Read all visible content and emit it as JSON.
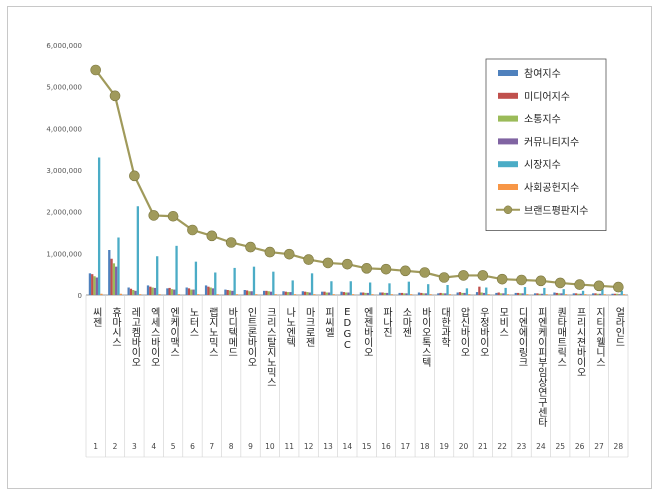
{
  "chart_data": {
    "type": "bar",
    "ylim": [
      0,
      6000000
    ],
    "yticks": [
      "0",
      "1,000,000",
      "2,000,000",
      "3,000,000",
      "4,000,000",
      "5,000,000",
      "6,000,000"
    ],
    "ytick_values": [
      0,
      1000000,
      2000000,
      3000000,
      4000000,
      5000000,
      6000000
    ],
    "legend_position": "top-right",
    "categories": [
      "씨젠",
      "휴마시스",
      "레고켐바이오",
      "엑세스바이오",
      "엔케이맥스",
      "노터스",
      "랩지노믹스",
      "바디텍메드",
      "인트론바이오",
      "크리스탈지노믹스",
      "나노엔텍",
      "마크로젠",
      "피씨엘",
      "EDGC",
      "엔젠바이오",
      "파나진",
      "소마젠",
      "바이오톡스텍",
      "대한과학",
      "압신바이오",
      "우정바이오",
      "모비스",
      "디엔에이링크",
      "피엔케이피부임상연구센타",
      "퀀타매트릭스",
      "프리시젼바이오",
      "지티지웰니스",
      "얼라인드"
    ],
    "ranks": [
      "1",
      "2",
      "3",
      "4",
      "5",
      "6",
      "7",
      "8",
      "9",
      "10",
      "11",
      "12",
      "13",
      "14",
      "15",
      "16",
      "17",
      "18",
      "19",
      "20",
      "21",
      "22",
      "23",
      "24",
      "25",
      "26",
      "27",
      "28"
    ],
    "series": [
      {
        "name": "참여지수",
        "color": "#4f81bd",
        "values": [
          520000,
          1080000,
          180000,
          230000,
          160000,
          180000,
          230000,
          130000,
          120000,
          100000,
          90000,
          90000,
          80000,
          80000,
          60000,
          60000,
          50000,
          60000,
          40000,
          60000,
          70000,
          50000,
          50000,
          40000,
          60000,
          40000,
          40000,
          30000
        ]
      },
      {
        "name": "미디어지수",
        "color": "#c0504d",
        "values": [
          500000,
          870000,
          150000,
          200000,
          170000,
          160000,
          200000,
          120000,
          110000,
          100000,
          80000,
          80000,
          80000,
          70000,
          60000,
          60000,
          50000,
          50000,
          50000,
          70000,
          200000,
          60000,
          50000,
          40000,
          50000,
          40000,
          40000,
          30000
        ]
      },
      {
        "name": "소통지수",
        "color": "#9bbb59",
        "values": [
          450000,
          760000,
          120000,
          180000,
          140000,
          130000,
          180000,
          110000,
          90000,
          90000,
          70000,
          70000,
          60000,
          60000,
          50000,
          50000,
          40000,
          40000,
          40000,
          50000,
          60000,
          40000,
          40000,
          30000,
          40000,
          30000,
          30000,
          30000
        ]
      },
      {
        "name": "커뮤니티지수",
        "color": "#8064a2",
        "values": [
          420000,
          680000,
          100000,
          170000,
          130000,
          130000,
          160000,
          100000,
          90000,
          80000,
          70000,
          60000,
          60000,
          60000,
          50000,
          50000,
          40000,
          40000,
          40000,
          50000,
          50000,
          40000,
          40000,
          30000,
          40000,
          30000,
          30000,
          20000
        ]
      },
      {
        "name": "시장지수",
        "color": "#4bacc6",
        "values": [
          3300000,
          1380000,
          2130000,
          930000,
          1180000,
          800000,
          540000,
          650000,
          680000,
          560000,
          350000,
          520000,
          330000,
          330000,
          300000,
          280000,
          320000,
          260000,
          240000,
          160000,
          180000,
          170000,
          190000,
          170000,
          140000,
          100000,
          140000,
          100000
        ]
      },
      {
        "name": "사회공헌지수",
        "color": "#f79646",
        "values": [
          30000,
          30000,
          20000,
          20000,
          20000,
          20000,
          20000,
          20000,
          20000,
          20000,
          20000,
          20000,
          20000,
          20000,
          20000,
          20000,
          20000,
          20000,
          20000,
          20000,
          20000,
          20000,
          20000,
          20000,
          20000,
          20000,
          20000,
          20000
        ]
      }
    ],
    "line_series": {
      "name": "브랜드평판지수",
      "color": "#a09a5b",
      "values": [
        5400000,
        4780000,
        2860000,
        1910000,
        1890000,
        1560000,
        1420000,
        1260000,
        1150000,
        1030000,
        980000,
        850000,
        770000,
        740000,
        640000,
        620000,
        580000,
        540000,
        420000,
        470000,
        470000,
        380000,
        360000,
        340000,
        290000,
        250000,
        220000,
        190000
      ]
    }
  }
}
